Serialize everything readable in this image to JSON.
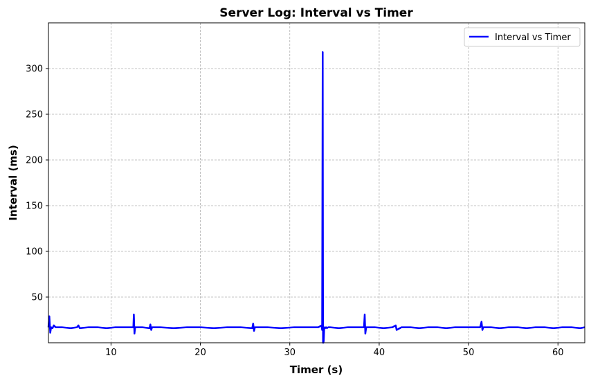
{
  "chart_data": {
    "type": "line",
    "title": "Server Log: Interval vs Timer",
    "xlabel": "Timer (s)",
    "ylabel": "Interval (ms)",
    "xlim": [
      3.0,
      63.0
    ],
    "ylim": [
      0,
      350
    ],
    "xticks": [
      10,
      20,
      30,
      40,
      50,
      60
    ],
    "yticks": [
      50,
      100,
      150,
      200,
      250,
      300
    ],
    "grid": true,
    "legend_position": "top-right",
    "series": [
      {
        "name": "Interval vs Timer",
        "color": "#0000ff",
        "x": [
          3.0,
          3.1,
          3.2,
          3.3,
          3.45,
          3.6,
          3.8,
          4.5,
          5.5,
          6.2,
          6.35,
          6.5,
          7.5,
          8.5,
          9.5,
          10.5,
          11.5,
          12.2,
          12.5,
          12.55,
          12.62,
          12.7,
          13.5,
          14.3,
          14.4,
          14.5,
          14.6,
          15.5,
          17.0,
          18.5,
          20.0,
          21.5,
          23.0,
          24.5,
          25.8,
          25.9,
          26.0,
          26.1,
          27.5,
          29.0,
          30.5,
          32.0,
          33.2,
          33.55,
          33.62,
          33.68,
          33.72,
          33.76,
          33.8,
          33.85,
          33.95,
          34.05,
          34.15,
          34.3,
          34.5,
          35.5,
          36.5,
          37.5,
          38.3,
          38.38,
          38.45,
          38.55,
          39.5,
          40.5,
          41.5,
          41.85,
          41.95,
          42.5,
          43.5,
          44.5,
          45.5,
          46.5,
          47.5,
          48.5,
          49.5,
          50.5,
          51.3,
          51.45,
          51.55,
          51.65,
          52.5,
          53.5,
          54.5,
          55.5,
          56.5,
          57.5,
          58.5,
          59.5,
          60.5,
          61.5,
          62.5,
          63.0
        ],
        "y": [
          17,
          29,
          11,
          17,
          16,
          19,
          17,
          17,
          16,
          17,
          19,
          16,
          17,
          17,
          16,
          17,
          17,
          17,
          17,
          31,
          10,
          17,
          17,
          16,
          20,
          14,
          17,
          17,
          16,
          17,
          17,
          16,
          17,
          17,
          16,
          21,
          13,
          17,
          17,
          16,
          17,
          17,
          17,
          19,
          14,
          318,
          0,
          0,
          2,
          17,
          16,
          17,
          16,
          17,
          17,
          16,
          17,
          17,
          17,
          31,
          10,
          17,
          17,
          16,
          17,
          19,
          14,
          17,
          17,
          16,
          17,
          17,
          16,
          17,
          17,
          17,
          17,
          23,
          14,
          17,
          17,
          16,
          17,
          17,
          16,
          17,
          17,
          16,
          17,
          17,
          16,
          17
        ]
      }
    ]
  }
}
